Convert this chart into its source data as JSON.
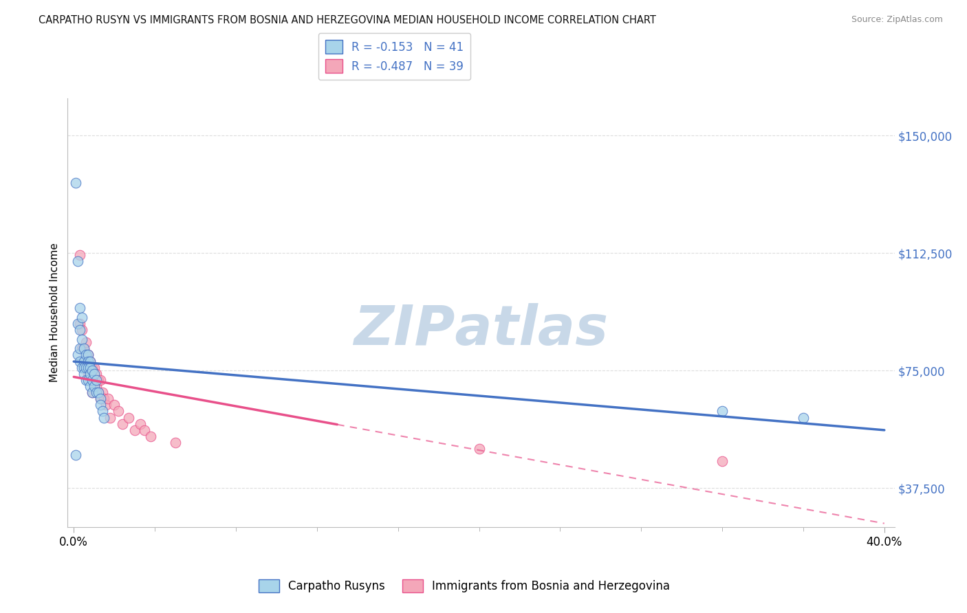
{
  "title": "CARPATHO RUSYN VS IMMIGRANTS FROM BOSNIA AND HERZEGOVINA MEDIAN HOUSEHOLD INCOME CORRELATION CHART",
  "source": "Source: ZipAtlas.com",
  "ylabel": "Median Household Income",
  "yticks": [
    37500,
    75000,
    112500,
    150000
  ],
  "ytick_labels": [
    "$37,500",
    "$75,000",
    "$112,500",
    "$150,000"
  ],
  "legend_label1": "Carpatho Rusyns",
  "legend_label2": "Immigrants from Bosnia and Herzegovina",
  "series1_R": -0.153,
  "series1_N": 41,
  "series2_R": -0.487,
  "series2_N": 39,
  "color1": "#A8D4EA",
  "color2": "#F4A7B9",
  "line_color1": "#4472C4",
  "line_color2": "#E8508A",
  "background_color": "#FFFFFF",
  "series1_x": [
    0.001,
    0.001,
    0.002,
    0.002,
    0.002,
    0.003,
    0.003,
    0.003,
    0.003,
    0.004,
    0.004,
    0.004,
    0.005,
    0.005,
    0.005,
    0.005,
    0.006,
    0.006,
    0.006,
    0.007,
    0.007,
    0.007,
    0.007,
    0.008,
    0.008,
    0.008,
    0.008,
    0.009,
    0.009,
    0.009,
    0.01,
    0.01,
    0.011,
    0.011,
    0.012,
    0.013,
    0.013,
    0.014,
    0.015,
    0.32,
    0.36
  ],
  "series1_y": [
    48000,
    135000,
    110000,
    90000,
    80000,
    95000,
    88000,
    82000,
    78000,
    92000,
    85000,
    76000,
    82000,
    78000,
    76000,
    74000,
    80000,
    76000,
    72000,
    80000,
    78000,
    76000,
    72000,
    78000,
    76000,
    74000,
    70000,
    75000,
    72000,
    68000,
    74000,
    70000,
    72000,
    68000,
    68000,
    66000,
    64000,
    62000,
    60000,
    62000,
    60000
  ],
  "series2_x": [
    0.003,
    0.003,
    0.004,
    0.004,
    0.005,
    0.005,
    0.006,
    0.006,
    0.007,
    0.007,
    0.008,
    0.008,
    0.009,
    0.009,
    0.009,
    0.01,
    0.01,
    0.011,
    0.011,
    0.012,
    0.012,
    0.013,
    0.013,
    0.014,
    0.015,
    0.016,
    0.017,
    0.018,
    0.02,
    0.022,
    0.024,
    0.027,
    0.03,
    0.033,
    0.035,
    0.038,
    0.05,
    0.2,
    0.32
  ],
  "series2_y": [
    112000,
    90000,
    88000,
    82000,
    82000,
    78000,
    84000,
    76000,
    80000,
    74000,
    78000,
    72000,
    76000,
    72000,
    68000,
    76000,
    72000,
    74000,
    70000,
    72000,
    68000,
    72000,
    66000,
    68000,
    66000,
    64000,
    66000,
    60000,
    64000,
    62000,
    58000,
    60000,
    56000,
    58000,
    56000,
    54000,
    52000,
    50000,
    46000
  ]
}
